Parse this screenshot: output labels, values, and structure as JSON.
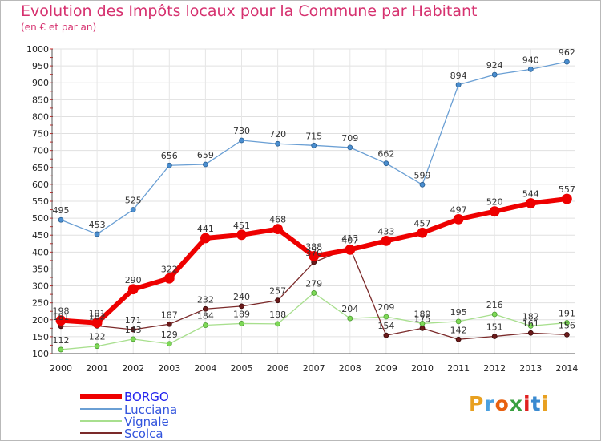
{
  "chart_data": {
    "type": "line",
    "title": "Evolution des Impôts locaux pour la Commune par Habitant",
    "subtitle": "(en € et par an)",
    "x": [
      "2000",
      "2001",
      "2002",
      "2003",
      "2004",
      "2005",
      "2006",
      "2007",
      "2008",
      "2009",
      "2010",
      "2011",
      "2012",
      "2013",
      "2014"
    ],
    "ylim": [
      100,
      1000
    ],
    "yticks": [
      "100",
      "150",
      "200",
      "250",
      "300",
      "350",
      "400",
      "450",
      "500",
      "550",
      "600",
      "650",
      "700",
      "750",
      "800",
      "850",
      "900",
      "950",
      "1000"
    ],
    "grid": true,
    "legend_position": "bottom-left",
    "series": [
      {
        "name": "BORGO",
        "color": "#ee0000",
        "values": [
          198,
          191,
          290,
          322,
          441,
          451,
          468,
          388,
          407,
          433,
          457,
          497,
          520,
          544,
          557
        ]
      },
      {
        "name": "Lucciana",
        "color": "#5b9bd5",
        "values": [
          495,
          453,
          525,
          656,
          659,
          730,
          720,
          715,
          709,
          662,
          599,
          894,
          924,
          940,
          962
        ]
      },
      {
        "name": "Vignale",
        "color": "#99dd77",
        "values": [
          112,
          122,
          143,
          129,
          184,
          189,
          188,
          279,
          204,
          209,
          189,
          195,
          216,
          182,
          191
        ]
      },
      {
        "name": "Scolca",
        "color": "#7b2222",
        "values": [
          181,
          182,
          171,
          187,
          232,
          240,
          257,
          370,
          413,
          154,
          175,
          142,
          151,
          161,
          156
        ]
      }
    ]
  },
  "logo": {
    "text": "Proxiti"
  }
}
